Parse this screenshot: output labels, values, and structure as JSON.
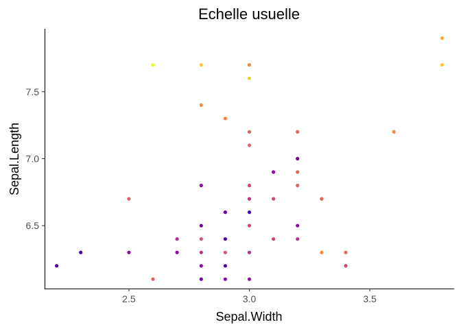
{
  "chart_data": {
    "type": "scatter",
    "title": "Echelle usuelle",
    "xlabel": "Sepal.Width",
    "ylabel": "Sepal.Length",
    "xlim": [
      2.15,
      3.85
    ],
    "ylim": [
      6.03,
      7.97
    ],
    "x_ticks": [
      {
        "value": 2.5,
        "label": "2.5"
      },
      {
        "value": 3.0,
        "label": "3.0"
      },
      {
        "value": 3.5,
        "label": "3.5"
      }
    ],
    "y_ticks": [
      {
        "value": 6.5,
        "label": "6.5"
      },
      {
        "value": 7.0,
        "label": "7.0"
      },
      {
        "value": 7.5,
        "label": "7.5"
      }
    ],
    "grid": false,
    "legend": "none",
    "color_palette": "plasma",
    "points": [
      {
        "x": 2.2,
        "y": 6.2,
        "color": "#4c02a1"
      },
      {
        "x": 2.3,
        "y": 6.3,
        "color": "#4c02a1"
      },
      {
        "x": 2.5,
        "y": 6.3,
        "color": "#8b0aa5"
      },
      {
        "x": 2.5,
        "y": 6.7,
        "color": "#e16462"
      },
      {
        "x": 2.6,
        "y": 6.1,
        "color": "#e16462"
      },
      {
        "x": 2.6,
        "y": 7.7,
        "color": "#f0f921"
      },
      {
        "x": 2.7,
        "y": 6.3,
        "color": "#8b0aa5"
      },
      {
        "x": 2.7,
        "y": 6.4,
        "color": "#b83289"
      },
      {
        "x": 2.8,
        "y": 6.1,
        "color": "#6a00a8"
      },
      {
        "x": 2.8,
        "y": 6.2,
        "color": "#8b0aa5"
      },
      {
        "x": 2.8,
        "y": 6.3,
        "color": "#b83289"
      },
      {
        "x": 2.8,
        "y": 6.4,
        "color": "#d5546e"
      },
      {
        "x": 2.8,
        "y": 6.5,
        "color": "#6a00a8"
      },
      {
        "x": 2.8,
        "y": 6.8,
        "color": "#8b0aa5"
      },
      {
        "x": 2.8,
        "y": 7.4,
        "color": "#f48849"
      },
      {
        "x": 2.8,
        "y": 7.7,
        "color": "#f9c932"
      },
      {
        "x": 2.9,
        "y": 6.1,
        "color": "#8b0aa5"
      },
      {
        "x": 2.9,
        "y": 6.2,
        "color": "#4c02a1"
      },
      {
        "x": 2.9,
        "y": 6.3,
        "color": "#d5546e"
      },
      {
        "x": 2.9,
        "y": 6.4,
        "color": "#4c02a1"
      },
      {
        "x": 2.9,
        "y": 6.6,
        "color": "#6a00a8"
      },
      {
        "x": 2.9,
        "y": 7.3,
        "color": "#f48849"
      },
      {
        "x": 3.0,
        "y": 6.1,
        "color": "#8b0aa5"
      },
      {
        "x": 3.0,
        "y": 6.3,
        "color": "#b83289"
      },
      {
        "x": 3.0,
        "y": 6.5,
        "color": "#cc4778"
      },
      {
        "x": 3.0,
        "y": 6.6,
        "color": "#4c02a1"
      },
      {
        "x": 3.0,
        "y": 6.7,
        "color": "#b83289"
      },
      {
        "x": 3.0,
        "y": 6.8,
        "color": "#cc4778"
      },
      {
        "x": 3.0,
        "y": 7.1,
        "color": "#e16462"
      },
      {
        "x": 3.0,
        "y": 7.2,
        "color": "#e16462"
      },
      {
        "x": 3.0,
        "y": 7.6,
        "color": "#f9c932"
      },
      {
        "x": 3.0,
        "y": 7.7,
        "color": "#f48849"
      },
      {
        "x": 3.1,
        "y": 6.4,
        "color": "#cc4778"
      },
      {
        "x": 3.1,
        "y": 6.7,
        "color": "#cc4778"
      },
      {
        "x": 3.1,
        "y": 6.9,
        "color": "#8b0aa5"
      },
      {
        "x": 3.2,
        "y": 6.4,
        "color": "#b83289"
      },
      {
        "x": 3.2,
        "y": 6.5,
        "color": "#8b0aa5"
      },
      {
        "x": 3.2,
        "y": 6.8,
        "color": "#e16462"
      },
      {
        "x": 3.2,
        "y": 6.9,
        "color": "#e16462"
      },
      {
        "x": 3.2,
        "y": 7.0,
        "color": "#6a00a8"
      },
      {
        "x": 3.2,
        "y": 7.2,
        "color": "#e16462"
      },
      {
        "x": 3.3,
        "y": 6.3,
        "color": "#f48849"
      },
      {
        "x": 3.3,
        "y": 6.7,
        "color": "#e16462"
      },
      {
        "x": 3.4,
        "y": 6.2,
        "color": "#cc4778"
      },
      {
        "x": 3.4,
        "y": 6.3,
        "color": "#e16462"
      },
      {
        "x": 3.6,
        "y": 7.2,
        "color": "#f48849"
      },
      {
        "x": 3.8,
        "y": 7.7,
        "color": "#f9c932"
      },
      {
        "x": 3.8,
        "y": 7.9,
        "color": "#f9a93a"
      }
    ]
  }
}
